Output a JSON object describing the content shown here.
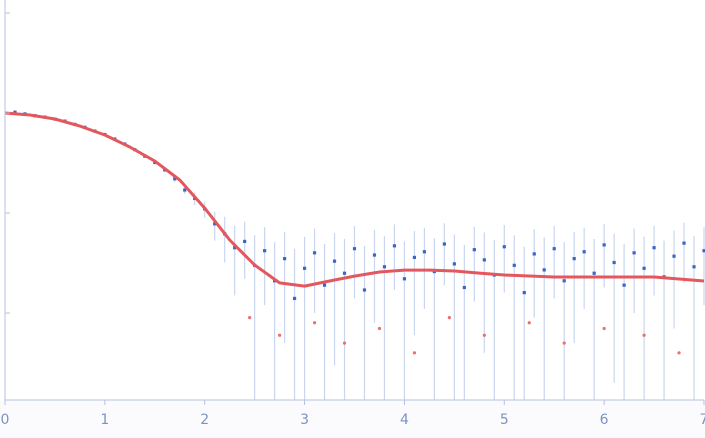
{
  "chart_data": {
    "type": "scatter",
    "xlim": [
      0,
      7
    ],
    "xticks": [
      0,
      1,
      2,
      3,
      4,
      5,
      6,
      7
    ],
    "ylim": [
      0.000135,
      1.35
    ],
    "yticks": [
      0.001,
      0.01,
      0.1,
      1
    ],
    "log_y": true,
    "points": {
      "color": "#3b66c4",
      "error_color": "#c9d6ee",
      "x": [
        0.1,
        0.2,
        0.3,
        0.4,
        0.5,
        0.6,
        0.7,
        0.8,
        0.9,
        1.0,
        1.1,
        1.2,
        1.3,
        1.4,
        1.5,
        1.6,
        1.7,
        1.8,
        1.9,
        2.0,
        2.1,
        2.2,
        2.3,
        2.4,
        2.5,
        2.6,
        2.7,
        2.8,
        2.9,
        3.0,
        3.1,
        3.2,
        3.3,
        3.4,
        3.5,
        3.6,
        3.7,
        3.8,
        3.9,
        4.0,
        4.1,
        4.2,
        4.3,
        4.4,
        4.5,
        4.6,
        4.7,
        4.8,
        4.9,
        5.0,
        5.1,
        5.2,
        5.3,
        5.4,
        5.5,
        5.6,
        5.7,
        5.8,
        5.9,
        6.0,
        6.1,
        6.2,
        6.3,
        6.4,
        6.5,
        6.6,
        6.7,
        6.8,
        6.9,
        7.0
      ],
      "values": [
        0.102,
        0.098,
        0.094,
        0.091,
        0.087,
        0.083,
        0.077,
        0.072,
        0.066,
        0.061,
        0.055,
        0.049,
        0.043,
        0.037,
        0.032,
        0.027,
        0.022,
        0.017,
        0.014,
        0.011,
        0.0078,
        0.0062,
        0.0045,
        0.0052,
        0.003,
        0.0042,
        0.0021,
        0.0035,
        0.0014,
        0.0028,
        0.004,
        0.0019,
        0.0033,
        0.0025,
        0.0044,
        0.0017,
        0.0038,
        0.0029,
        0.0047,
        0.0022,
        0.0036,
        0.0041,
        0.0026,
        0.0049,
        0.0031,
        0.0018,
        0.0043,
        0.0034,
        0.0024,
        0.0046,
        0.003,
        0.0016,
        0.0039,
        0.0027,
        0.0044,
        0.0021,
        0.0035,
        0.0041,
        0.0025,
        0.0048,
        0.0032,
        0.0019,
        0.004,
        0.0028,
        0.0045,
        0.0023,
        0.0037,
        0.005,
        0.0029,
        0.0042
      ],
      "errors": [
        0.001,
        0.001,
        0.001,
        0.001,
        0.001,
        0.001,
        0.001,
        0.001,
        0.001,
        0.001,
        0.001,
        0.001,
        0.001,
        0.001,
        0.001,
        0.0015,
        0.0015,
        0.0015,
        0.002,
        0.002,
        0.0025,
        0.003,
        0.003,
        0.003,
        0.003,
        0.003,
        0.003,
        0.003,
        0.003,
        0.003,
        0.003,
        0.003,
        0.003,
        0.003,
        0.003,
        0.003,
        0.003,
        0.003,
        0.003,
        0.003,
        0.003,
        0.003,
        0.003,
        0.003,
        0.003,
        0.003,
        0.003,
        0.003,
        0.003,
        0.003,
        0.003,
        0.003,
        0.003,
        0.003,
        0.003,
        0.003,
        0.003,
        0.003,
        0.003,
        0.003,
        0.003,
        0.003,
        0.003,
        0.003,
        0.003,
        0.003,
        0.003,
        0.003,
        0.003,
        0.003
      ]
    },
    "outliers": {
      "color": "#e8706f",
      "x": [
        2.45,
        2.75,
        3.1,
        3.4,
        3.75,
        4.1,
        4.45,
        4.8,
        5.25,
        5.6,
        6.0,
        6.4,
        6.75
      ],
      "values": [
        0.0009,
        0.0006,
        0.0008,
        0.0005,
        0.0007,
        0.0004,
        0.0009,
        0.0006,
        0.0008,
        0.0005,
        0.0007,
        0.0006,
        0.0004
      ]
    },
    "fit": {
      "color": "#e4575c",
      "x": [
        0,
        0.25,
        0.5,
        0.75,
        1,
        1.25,
        1.5,
        1.75,
        2,
        2.25,
        2.5,
        2.75,
        3,
        3.25,
        3.5,
        3.75,
        4,
        4.25,
        4.5,
        4.75,
        5,
        5.5,
        6,
        6.5,
        7
      ],
      "values": [
        0.1,
        0.0955,
        0.0871,
        0.0741,
        0.0603,
        0.0457,
        0.0331,
        0.0214,
        0.0112,
        0.00537,
        0.00302,
        0.002,
        0.00186,
        0.00209,
        0.00234,
        0.00257,
        0.00269,
        0.00269,
        0.00263,
        0.00251,
        0.0024,
        0.00229,
        0.00229,
        0.00229,
        0.00209
      ]
    }
  }
}
